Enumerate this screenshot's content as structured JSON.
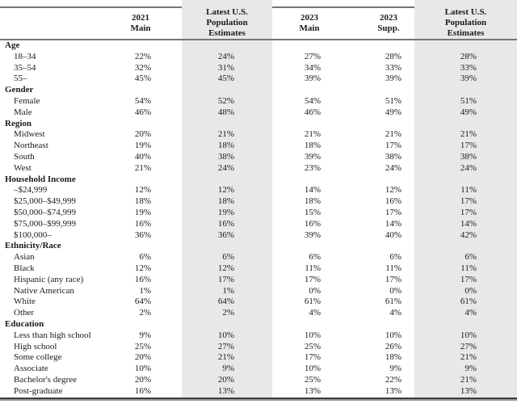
{
  "colors": {
    "shaded_column": "#e8e8e8",
    "rule_gray": "#767676",
    "rule_dark": "#3b3b3b",
    "rule_dark2": "#9a9a9a",
    "text": "#1b1b1b"
  },
  "table": {
    "columns": [
      {
        "id": "category",
        "lines": [],
        "shaded": false
      },
      {
        "id": "2021-main",
        "lines": [
          "2021",
          "Main"
        ],
        "shaded": false
      },
      {
        "id": "latest-us-population-estimates-1",
        "lines": [
          "Latest U.S.",
          "Population",
          "Estimates"
        ],
        "shaded": true
      },
      {
        "id": "2023-main",
        "lines": [
          "2023",
          "Main"
        ],
        "shaded": false
      },
      {
        "id": "2023-supp",
        "lines": [
          "2023",
          "Supp."
        ],
        "shaded": false
      },
      {
        "id": "latest-us-population-estimates-2",
        "lines": [
          "Latest U.S.",
          "Population",
          "Estimates"
        ],
        "shaded": true
      }
    ],
    "sections": [
      {
        "label": "Age",
        "rows": [
          {
            "label": "18–34",
            "values": [
              "22%",
              "24%",
              "27%",
              "28%",
              "28%"
            ]
          },
          {
            "label": "35–54",
            "values": [
              "32%",
              "31%",
              "34%",
              "33%",
              "33%"
            ]
          },
          {
            "label": "55–",
            "values": [
              "45%",
              "45%",
              "39%",
              "39%",
              "39%"
            ]
          }
        ]
      },
      {
        "label": "Gender",
        "rows": [
          {
            "label": "Female",
            "values": [
              "54%",
              "52%",
              "54%",
              "51%",
              "51%"
            ]
          },
          {
            "label": "Male",
            "values": [
              "46%",
              "48%",
              "46%",
              "49%",
              "49%"
            ]
          }
        ]
      },
      {
        "label": "Region",
        "rows": [
          {
            "label": "Midwest",
            "values": [
              "20%",
              "21%",
              "21%",
              "21%",
              "21%"
            ]
          },
          {
            "label": "Northeast",
            "values": [
              "19%",
              "18%",
              "18%",
              "17%",
              "17%"
            ]
          },
          {
            "label": "South",
            "values": [
              "40%",
              "38%",
              "39%",
              "38%",
              "38%"
            ]
          },
          {
            "label": "West",
            "values": [
              "21%",
              "24%",
              "23%",
              "24%",
              "24%"
            ]
          }
        ]
      },
      {
        "label": "Household Income",
        "rows": [
          {
            "label": "–$24,999",
            "values": [
              "12%",
              "12%",
              "14%",
              "12%",
              "11%"
            ]
          },
          {
            "label": "$25,000–$49,999",
            "values": [
              "18%",
              "18%",
              "18%",
              "16%",
              "17%"
            ]
          },
          {
            "label": "$50,000–$74,999",
            "values": [
              "19%",
              "19%",
              "15%",
              "17%",
              "17%"
            ]
          },
          {
            "label": "$75,000–$99,999",
            "values": [
              "16%",
              "16%",
              "16%",
              "14%",
              "14%"
            ]
          },
          {
            "label": "$100,000–",
            "values": [
              "36%",
              "36%",
              "39%",
              "40%",
              "42%"
            ]
          }
        ]
      },
      {
        "label": "Ethnicity/Race",
        "rows": [
          {
            "label": "Asian",
            "values": [
              "6%",
              "6%",
              "6%",
              "6%",
              "6%"
            ]
          },
          {
            "label": "Black",
            "values": [
              "12%",
              "12%",
              "11%",
              "11%",
              "11%"
            ]
          },
          {
            "label": "Hispanic (any race)",
            "values": [
              "16%",
              "17%",
              "17%",
              "17%",
              "17%"
            ]
          },
          {
            "label": "Native American",
            "values": [
              "1%",
              "1%",
              "0%",
              "0%",
              "0%"
            ]
          },
          {
            "label": "White",
            "values": [
              "64%",
              "64%",
              "61%",
              "61%",
              "61%"
            ]
          },
          {
            "label": "Other",
            "values": [
              "2%",
              "2%",
              "4%",
              "4%",
              "4%"
            ]
          }
        ]
      },
      {
        "label": "Education",
        "rows": [
          {
            "label": "Less than high school",
            "values": [
              "9%",
              "10%",
              "10%",
              "10%",
              "10%"
            ]
          },
          {
            "label": "High school",
            "values": [
              "25%",
              "27%",
              "25%",
              "26%",
              "27%"
            ]
          },
          {
            "label": "Some college",
            "values": [
              "20%",
              "21%",
              "17%",
              "18%",
              "21%"
            ]
          },
          {
            "label": "Associate",
            "values": [
              "10%",
              "9%",
              "10%",
              "9%",
              "9%"
            ]
          },
          {
            "label": "Bachelor's degree",
            "values": [
              "20%",
              "20%",
              "25%",
              "22%",
              "21%"
            ]
          },
          {
            "label": "Post-graduate",
            "values": [
              "16%",
              "13%",
              "13%",
              "13%",
              "13%"
            ]
          }
        ]
      }
    ]
  }
}
